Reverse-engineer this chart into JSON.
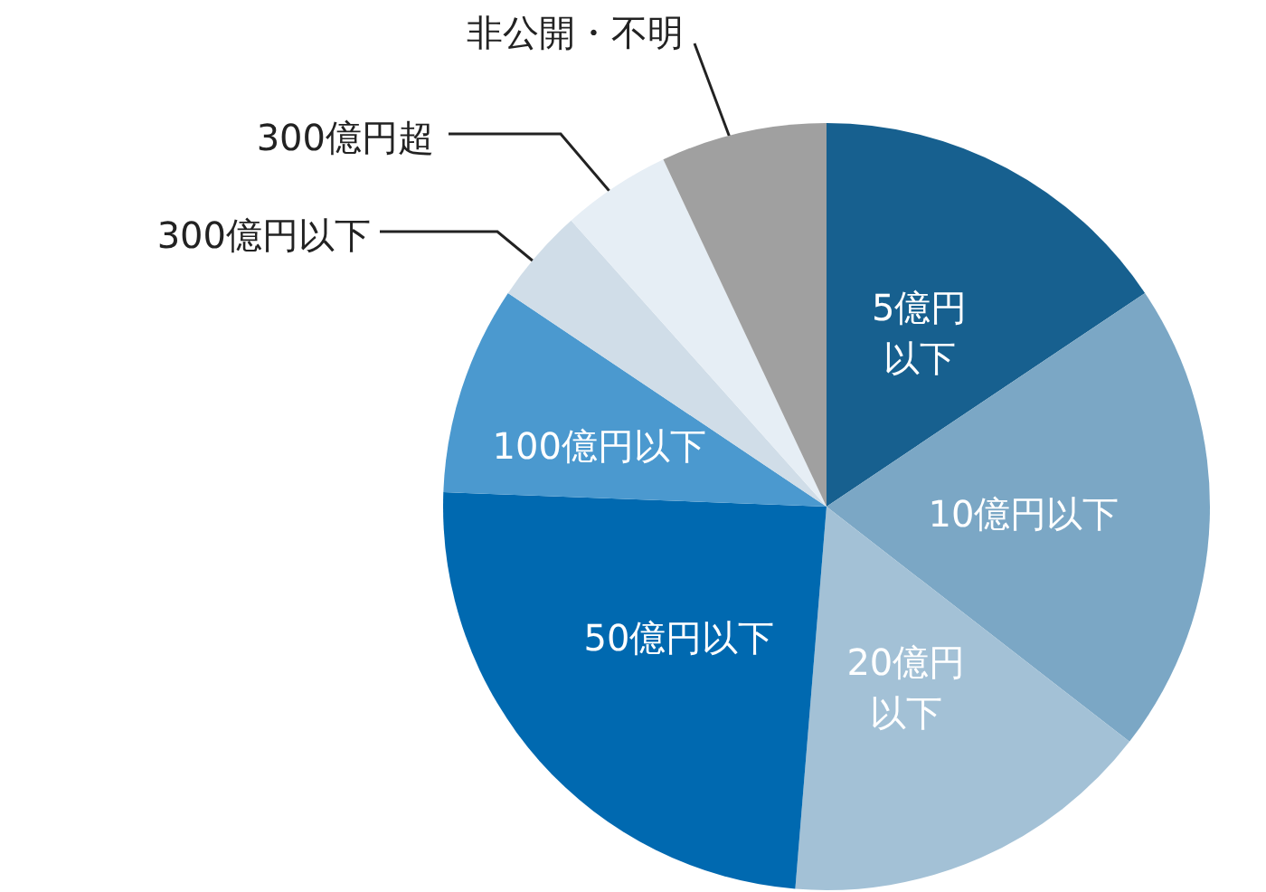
{
  "chart_data": {
    "type": "pie",
    "categories": [
      "5億円以下",
      "10億円以下",
      "20億円以下",
      "50億円以下",
      "100億円以下",
      "300億円以下",
      "300億円超",
      "非公開・不明"
    ],
    "values": [
      15.6,
      19.9,
      15.8,
      24.3,
      8.8,
      4.0,
      4.6,
      7.0
    ],
    "colors": [
      "#17608f",
      "#7ba7c5",
      "#a3c1d6",
      "#0069b0",
      "#4b99cf",
      "#d0dde8",
      "#e6eef5",
      "#a0a0a0"
    ],
    "legend": false
  }
}
